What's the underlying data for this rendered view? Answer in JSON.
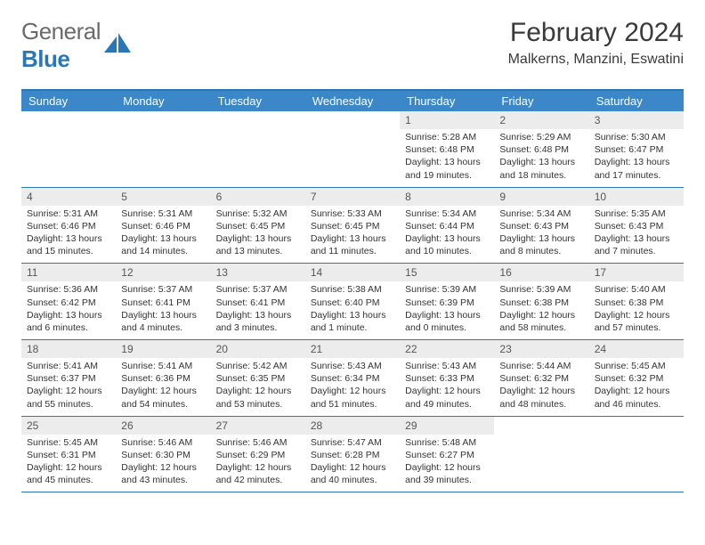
{
  "logo": {
    "text_gray": "General",
    "text_blue": "Blue"
  },
  "header": {
    "month_title": "February 2024",
    "location": "Malkerns, Manzini, Eswatini"
  },
  "colors": {
    "header_bg": "#3b87c8",
    "border": "#2d76b5",
    "daynum_bg": "#ececec",
    "logo_gray": "#6a6a6a",
    "logo_blue": "#2d76b5"
  },
  "day_names": [
    "Sunday",
    "Monday",
    "Tuesday",
    "Wednesday",
    "Thursday",
    "Friday",
    "Saturday"
  ],
  "weeks": [
    [
      {
        "n": "",
        "sr": "",
        "ss": "",
        "dl": ""
      },
      {
        "n": "",
        "sr": "",
        "ss": "",
        "dl": ""
      },
      {
        "n": "",
        "sr": "",
        "ss": "",
        "dl": ""
      },
      {
        "n": "",
        "sr": "",
        "ss": "",
        "dl": ""
      },
      {
        "n": "1",
        "sr": "Sunrise: 5:28 AM",
        "ss": "Sunset: 6:48 PM",
        "dl": "Daylight: 13 hours and 19 minutes."
      },
      {
        "n": "2",
        "sr": "Sunrise: 5:29 AM",
        "ss": "Sunset: 6:48 PM",
        "dl": "Daylight: 13 hours and 18 minutes."
      },
      {
        "n": "3",
        "sr": "Sunrise: 5:30 AM",
        "ss": "Sunset: 6:47 PM",
        "dl": "Daylight: 13 hours and 17 minutes."
      }
    ],
    [
      {
        "n": "4",
        "sr": "Sunrise: 5:31 AM",
        "ss": "Sunset: 6:46 PM",
        "dl": "Daylight: 13 hours and 15 minutes."
      },
      {
        "n": "5",
        "sr": "Sunrise: 5:31 AM",
        "ss": "Sunset: 6:46 PM",
        "dl": "Daylight: 13 hours and 14 minutes."
      },
      {
        "n": "6",
        "sr": "Sunrise: 5:32 AM",
        "ss": "Sunset: 6:45 PM",
        "dl": "Daylight: 13 hours and 13 minutes."
      },
      {
        "n": "7",
        "sr": "Sunrise: 5:33 AM",
        "ss": "Sunset: 6:45 PM",
        "dl": "Daylight: 13 hours and 11 minutes."
      },
      {
        "n": "8",
        "sr": "Sunrise: 5:34 AM",
        "ss": "Sunset: 6:44 PM",
        "dl": "Daylight: 13 hours and 10 minutes."
      },
      {
        "n": "9",
        "sr": "Sunrise: 5:34 AM",
        "ss": "Sunset: 6:43 PM",
        "dl": "Daylight: 13 hours and 8 minutes."
      },
      {
        "n": "10",
        "sr": "Sunrise: 5:35 AM",
        "ss": "Sunset: 6:43 PM",
        "dl": "Daylight: 13 hours and 7 minutes."
      }
    ],
    [
      {
        "n": "11",
        "sr": "Sunrise: 5:36 AM",
        "ss": "Sunset: 6:42 PM",
        "dl": "Daylight: 13 hours and 6 minutes."
      },
      {
        "n": "12",
        "sr": "Sunrise: 5:37 AM",
        "ss": "Sunset: 6:41 PM",
        "dl": "Daylight: 13 hours and 4 minutes."
      },
      {
        "n": "13",
        "sr": "Sunrise: 5:37 AM",
        "ss": "Sunset: 6:41 PM",
        "dl": "Daylight: 13 hours and 3 minutes."
      },
      {
        "n": "14",
        "sr": "Sunrise: 5:38 AM",
        "ss": "Sunset: 6:40 PM",
        "dl": "Daylight: 13 hours and 1 minute."
      },
      {
        "n": "15",
        "sr": "Sunrise: 5:39 AM",
        "ss": "Sunset: 6:39 PM",
        "dl": "Daylight: 13 hours and 0 minutes."
      },
      {
        "n": "16",
        "sr": "Sunrise: 5:39 AM",
        "ss": "Sunset: 6:38 PM",
        "dl": "Daylight: 12 hours and 58 minutes."
      },
      {
        "n": "17",
        "sr": "Sunrise: 5:40 AM",
        "ss": "Sunset: 6:38 PM",
        "dl": "Daylight: 12 hours and 57 minutes."
      }
    ],
    [
      {
        "n": "18",
        "sr": "Sunrise: 5:41 AM",
        "ss": "Sunset: 6:37 PM",
        "dl": "Daylight: 12 hours and 55 minutes."
      },
      {
        "n": "19",
        "sr": "Sunrise: 5:41 AM",
        "ss": "Sunset: 6:36 PM",
        "dl": "Daylight: 12 hours and 54 minutes."
      },
      {
        "n": "20",
        "sr": "Sunrise: 5:42 AM",
        "ss": "Sunset: 6:35 PM",
        "dl": "Daylight: 12 hours and 53 minutes."
      },
      {
        "n": "21",
        "sr": "Sunrise: 5:43 AM",
        "ss": "Sunset: 6:34 PM",
        "dl": "Daylight: 12 hours and 51 minutes."
      },
      {
        "n": "22",
        "sr": "Sunrise: 5:43 AM",
        "ss": "Sunset: 6:33 PM",
        "dl": "Daylight: 12 hours and 49 minutes."
      },
      {
        "n": "23",
        "sr": "Sunrise: 5:44 AM",
        "ss": "Sunset: 6:32 PM",
        "dl": "Daylight: 12 hours and 48 minutes."
      },
      {
        "n": "24",
        "sr": "Sunrise: 5:45 AM",
        "ss": "Sunset: 6:32 PM",
        "dl": "Daylight: 12 hours and 46 minutes."
      }
    ],
    [
      {
        "n": "25",
        "sr": "Sunrise: 5:45 AM",
        "ss": "Sunset: 6:31 PM",
        "dl": "Daylight: 12 hours and 45 minutes."
      },
      {
        "n": "26",
        "sr": "Sunrise: 5:46 AM",
        "ss": "Sunset: 6:30 PM",
        "dl": "Daylight: 12 hours and 43 minutes."
      },
      {
        "n": "27",
        "sr": "Sunrise: 5:46 AM",
        "ss": "Sunset: 6:29 PM",
        "dl": "Daylight: 12 hours and 42 minutes."
      },
      {
        "n": "28",
        "sr": "Sunrise: 5:47 AM",
        "ss": "Sunset: 6:28 PM",
        "dl": "Daylight: 12 hours and 40 minutes."
      },
      {
        "n": "29",
        "sr": "Sunrise: 5:48 AM",
        "ss": "Sunset: 6:27 PM",
        "dl": "Daylight: 12 hours and 39 minutes."
      },
      {
        "n": "",
        "sr": "",
        "ss": "",
        "dl": ""
      },
      {
        "n": "",
        "sr": "",
        "ss": "",
        "dl": ""
      }
    ]
  ]
}
